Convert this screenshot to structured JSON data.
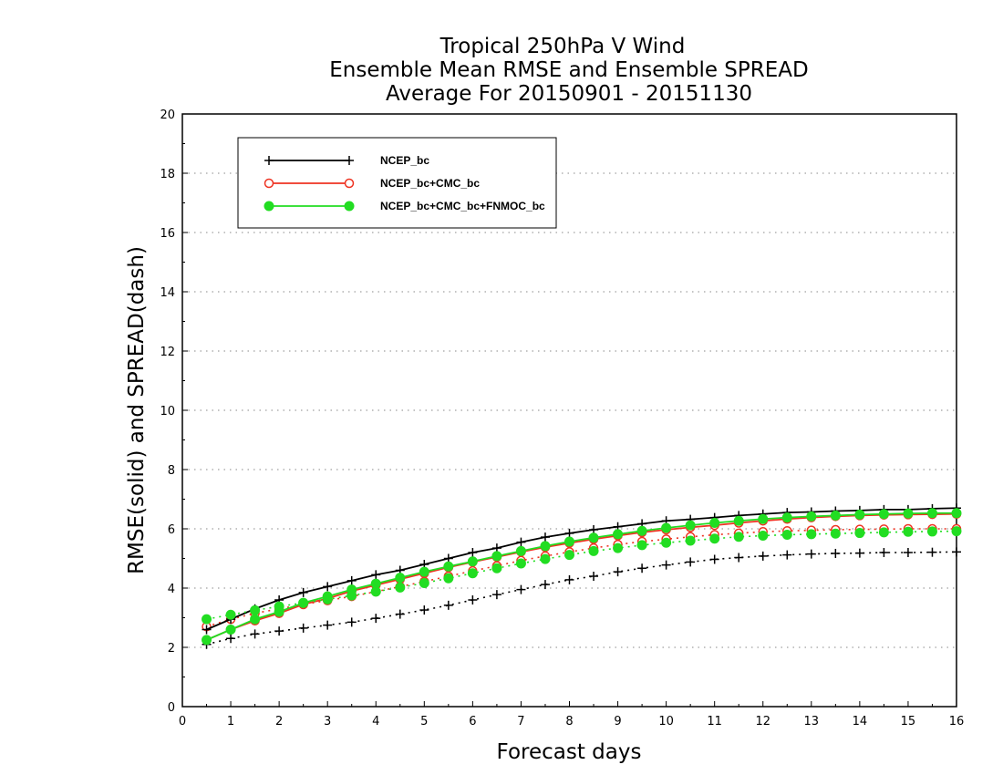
{
  "chart_data": {
    "type": "line",
    "title_lines": [
      "Tropical 250hPa V Wind",
      "Ensemble Mean RMSE and Ensemble SPREAD",
      "Average For 20150901 - 20151130"
    ],
    "xlabel": "Forecast days",
    "ylabel": "RMSE(solid) and SPREAD(dash)",
    "xlim": [
      0,
      16
    ],
    "ylim": [
      0,
      20
    ],
    "x_ticks": [
      0,
      1,
      2,
      3,
      4,
      5,
      6,
      7,
      8,
      9,
      10,
      11,
      12,
      13,
      14,
      15,
      16
    ],
    "y_ticks": [
      0,
      2,
      4,
      6,
      8,
      10,
      12,
      14,
      16,
      18,
      20
    ],
    "grid": "horizontal dotted",
    "legend_position": "top-left",
    "x": [
      0.5,
      1,
      1.5,
      2,
      2.5,
      3,
      3.5,
      4,
      4.5,
      5,
      5.5,
      6,
      6.5,
      7,
      7.5,
      8,
      8.5,
      9,
      9.5,
      10,
      10.5,
      11,
      11.5,
      12,
      12.5,
      13,
      13.5,
      14,
      14.5,
      15,
      15.5,
      16
    ],
    "series": [
      {
        "name": "NCEP_bc",
        "color": "#000000",
        "marker": "plus",
        "rmse": [
          2.6,
          2.95,
          3.3,
          3.6,
          3.85,
          4.05,
          4.25,
          4.45,
          4.6,
          4.8,
          5.0,
          5.2,
          5.35,
          5.55,
          5.72,
          5.85,
          5.97,
          6.07,
          6.17,
          6.27,
          6.32,
          6.38,
          6.45,
          6.5,
          6.55,
          6.57,
          6.6,
          6.62,
          6.65,
          6.65,
          6.68,
          6.7
        ],
        "spread": [
          2.1,
          2.3,
          2.45,
          2.55,
          2.65,
          2.75,
          2.85,
          2.98,
          3.12,
          3.26,
          3.42,
          3.6,
          3.78,
          3.95,
          4.12,
          4.28,
          4.4,
          4.55,
          4.67,
          4.78,
          4.88,
          4.97,
          5.03,
          5.08,
          5.12,
          5.15,
          5.17,
          5.18,
          5.2,
          5.2,
          5.21,
          5.22
        ]
      },
      {
        "name": "NCEP_bc+CMC_bc",
        "color": "#ee3322",
        "marker": "open-circle",
        "rmse": [
          2.25,
          2.6,
          2.9,
          3.15,
          3.45,
          3.65,
          3.9,
          4.1,
          4.3,
          4.5,
          4.7,
          4.88,
          5.05,
          5.22,
          5.38,
          5.52,
          5.65,
          5.77,
          5.88,
          5.97,
          6.05,
          6.12,
          6.2,
          6.27,
          6.33,
          6.38,
          6.42,
          6.45,
          6.47,
          6.48,
          6.49,
          6.5
        ],
        "spread": [
          2.7,
          2.95,
          3.15,
          3.3,
          3.45,
          3.58,
          3.72,
          3.88,
          4.05,
          4.22,
          4.4,
          4.58,
          4.75,
          4.93,
          5.08,
          5.22,
          5.35,
          5.47,
          5.57,
          5.65,
          5.73,
          5.8,
          5.85,
          5.9,
          5.93,
          5.95,
          5.97,
          5.98,
          5.99,
          6.0,
          6.0,
          6.0
        ]
      },
      {
        "name": "NCEP_bc+CMC_bc+FNMOC_bc",
        "color": "#22dd22",
        "marker": "filled-circle",
        "rmse": [
          2.25,
          2.6,
          2.95,
          3.2,
          3.5,
          3.72,
          3.95,
          4.15,
          4.35,
          4.55,
          4.73,
          4.9,
          5.08,
          5.25,
          5.42,
          5.57,
          5.7,
          5.82,
          5.93,
          6.03,
          6.12,
          6.2,
          6.27,
          6.33,
          6.38,
          6.42,
          6.45,
          6.48,
          6.5,
          6.52,
          6.53,
          6.53
        ],
        "spread": [
          2.95,
          3.1,
          3.25,
          3.38,
          3.5,
          3.62,
          3.75,
          3.88,
          4.02,
          4.17,
          4.33,
          4.5,
          4.67,
          4.83,
          4.98,
          5.12,
          5.25,
          5.35,
          5.45,
          5.53,
          5.6,
          5.67,
          5.73,
          5.77,
          5.8,
          5.82,
          5.84,
          5.86,
          5.88,
          5.9,
          5.91,
          5.92
        ]
      }
    ]
  }
}
